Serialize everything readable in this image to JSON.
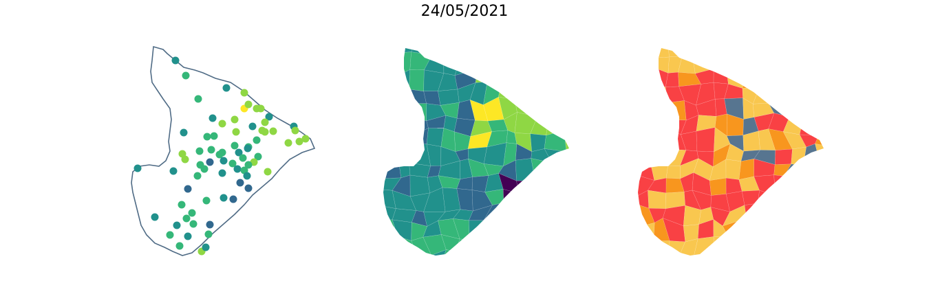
{
  "figure": {
    "title": "24/05/2021"
  },
  "colors": {
    "outline": "#4f6b85",
    "viridis_dark": "#440154",
    "viridis_blue": "#31688e",
    "viridis_teal": "#21918c",
    "viridis_green": "#35b779",
    "viridis_light": "#8fd744",
    "viridis_yellow": "#fde725",
    "risk_red": "#f94144",
    "risk_orange": "#f8961e",
    "risk_yellow": "#f9c74f",
    "risk_slate": "#577590"
  },
  "panels": [
    {
      "id": "station-points-map",
      "kind": "points"
    },
    {
      "id": "viridis-choropleth-map",
      "kind": "choropleth"
    },
    {
      "id": "risk-category-map",
      "kind": "categorical"
    }
  ]
}
